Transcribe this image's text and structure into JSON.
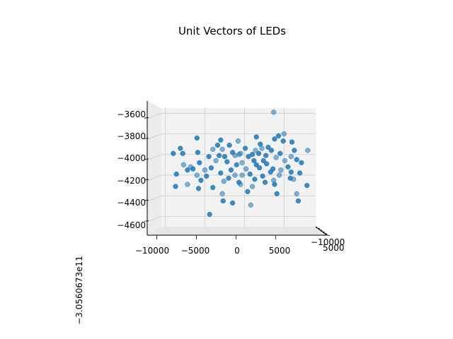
{
  "chart_data": {
    "type": "scatter",
    "title": "Unit Vectors of LEDs",
    "projection": "3d",
    "xlabel": "",
    "ylabel": "",
    "zlabel": "",
    "x_ticks": [
      "−10000",
      "−5000",
      "0",
      "5000"
    ],
    "y_ticks": [
      "−10000",
      "5000"
    ],
    "z_ticks": [
      "−3600",
      "−3800",
      "−4000",
      "−4200",
      "−4400",
      "−4600"
    ],
    "z_offset_label": "−3.0560673e11",
    "xlim": [
      -10500,
      9000
    ],
    "zlim": [
      -4700,
      -3550
    ],
    "grid": true,
    "marker_color": "#1f77b4",
    "points": [
      {
        "x": 3700,
        "z": -3590
      },
      {
        "x": -6000,
        "z": -3840
      },
      {
        "x": 4300,
        "z": -3820
      },
      {
        "x": 5000,
        "z": -3800
      },
      {
        "x": 1500,
        "z": -3830
      },
      {
        "x": -3000,
        "z": -3860
      },
      {
        "x": -800,
        "z": -3870
      },
      {
        "x": 3800,
        "z": -3850
      },
      {
        "x": 6000,
        "z": -3880
      },
      {
        "x": -2800,
        "z": -3950
      },
      {
        "x": -3400,
        "z": -3910
      },
      {
        "x": -1900,
        "z": -3910
      },
      {
        "x": 2200,
        "z": -3940
      },
      {
        "x": 3000,
        "z": -3930
      },
      {
        "x": 6300,
        "z": -3960
      },
      {
        "x": 8000,
        "z": -3960
      },
      {
        "x": -8100,
        "z": -3940
      },
      {
        "x": -5900,
        "z": -3980
      },
      {
        "x": -4000,
        "z": -3950
      },
      {
        "x": -1500,
        "z": -3980
      },
      {
        "x": 100,
        "z": -3940
      },
      {
        "x": 1400,
        "z": -3960
      },
      {
        "x": 3400,
        "z": -3960
      },
      {
        "x": -9000,
        "z": -3990
      },
      {
        "x": -700,
        "z": -4000
      },
      {
        "x": 1800,
        "z": -3990
      },
      {
        "x": 4500,
        "z": -3990
      },
      {
        "x": 5900,
        "z": -4020
      },
      {
        "x": -3200,
        "z": -4010
      },
      {
        "x": -2500,
        "z": -4020
      },
      {
        "x": -1200,
        "z": -4010
      },
      {
        "x": 500,
        "z": -4020
      },
      {
        "x": 2700,
        "z": -4010
      },
      {
        "x": 4000,
        "z": -4030
      },
      {
        "x": 6600,
        "z": -4050
      },
      {
        "x": 7200,
        "z": -4080
      },
      {
        "x": -7700,
        "z": -4100
      },
      {
        "x": -5700,
        "z": -4080
      },
      {
        "x": -2200,
        "z": -4070
      },
      {
        "x": -300,
        "z": -4080
      },
      {
        "x": 1200,
        "z": -4060
      },
      {
        "x": 2800,
        "z": -4090
      },
      {
        "x": 5100,
        "z": -4060
      },
      {
        "x": -7200,
        "z": -4150
      },
      {
        "x": -6500,
        "z": -4140
      },
      {
        "x": -5000,
        "z": -4150
      },
      {
        "x": -4200,
        "z": -4130
      },
      {
        "x": -1700,
        "z": -4150
      },
      {
        "x": 200,
        "z": -4140
      },
      {
        "x": 1900,
        "z": -4130
      },
      {
        "x": 3600,
        "z": -4140
      },
      {
        "x": 4600,
        "z": -4150
      },
      {
        "x": 5900,
        "z": -4170
      },
      {
        "x": -8600,
        "z": -4190
      },
      {
        "x": -6000,
        "z": -4200
      },
      {
        "x": -4800,
        "z": -4210
      },
      {
        "x": -3000,
        "z": -4180
      },
      {
        "x": -1200,
        "z": -4200
      },
      {
        "x": 700,
        "z": -4190
      },
      {
        "x": 2300,
        "z": -4210
      },
      {
        "x": 4400,
        "z": -4200
      },
      {
        "x": 7000,
        "z": -4180
      },
      {
        "x": -5500,
        "z": -4250
      },
      {
        "x": -2600,
        "z": -4260
      },
      {
        "x": -700,
        "z": -4270
      },
      {
        "x": 1300,
        "z": -4240
      },
      {
        "x": 3700,
        "z": -4250
      },
      {
        "x": 5800,
        "z": -4230
      },
      {
        "x": -8700,
        "z": -4310
      },
      {
        "x": -7200,
        "z": -4290
      },
      {
        "x": -5800,
        "z": -4330
      },
      {
        "x": -4000,
        "z": -4320
      },
      {
        "x": 1000,
        "z": -4310
      },
      {
        "x": 3800,
        "z": -4290
      },
      {
        "x": 7900,
        "z": -4300
      },
      {
        "x": -2800,
        "z": -4380
      },
      {
        "x": 400,
        "z": -4360
      },
      {
        "x": 4100,
        "z": -4380
      },
      {
        "x": 6600,
        "z": -4380
      },
      {
        "x": -2700,
        "z": -4450
      },
      {
        "x": -1500,
        "z": -4470
      },
      {
        "x": 800,
        "z": -4490
      },
      {
        "x": 6800,
        "z": -4450
      },
      {
        "x": -4400,
        "z": -4580
      },
      {
        "x": -500,
        "z": -3990
      },
      {
        "x": 1000,
        "z": -4000
      },
      {
        "x": -4500,
        "z": -4020
      },
      {
        "x": -300,
        "z": -4200
      },
      {
        "x": 2400,
        "z": -4060
      },
      {
        "x": 5500,
        "z": -4120
      },
      {
        "x": -6800,
        "z": -4120
      },
      {
        "x": -1000,
        "z": -4100
      },
      {
        "x": 3300,
        "z": -4170
      },
      {
        "x": -3600,
        "z": -4060
      },
      {
        "x": 2000,
        "z": -3900
      },
      {
        "x": 4900,
        "z": -3870
      },
      {
        "x": -500,
        "z": -4290
      },
      {
        "x": 2600,
        "z": -4270
      },
      {
        "x": -7800,
        "z": -3990
      },
      {
        "x": 6200,
        "z": -4240
      },
      {
        "x": -2000,
        "z": -4230
      },
      {
        "x": 1500,
        "z": -4100
      }
    ]
  }
}
